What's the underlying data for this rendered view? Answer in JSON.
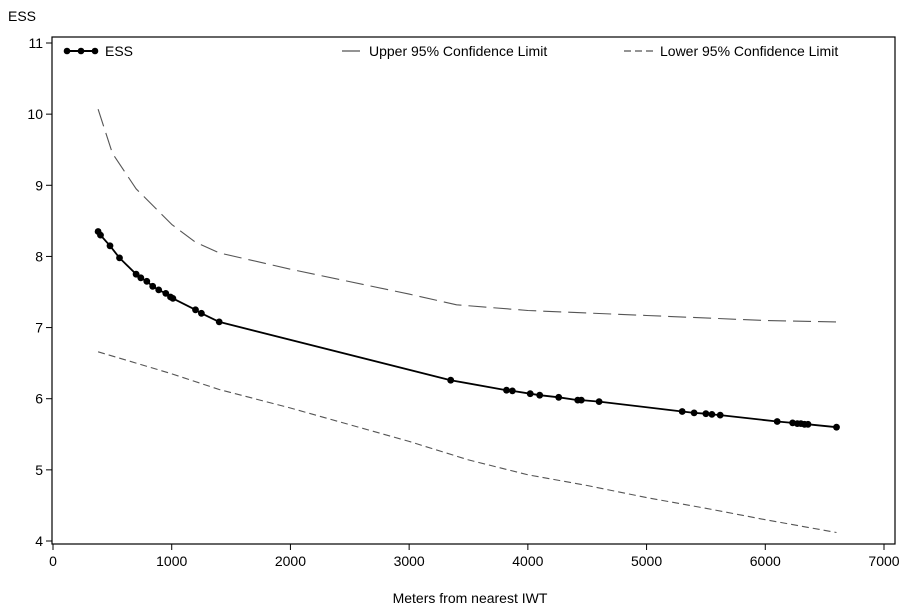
{
  "chart_data": {
    "type": "line",
    "title": "",
    "xlabel": "Meters from nearest IWT",
    "ylabel": "ESS",
    "xlim": [
      0,
      7000
    ],
    "ylim": [
      4,
      11
    ],
    "x_ticks": [
      0,
      1000,
      2000,
      3000,
      4000,
      5000,
      6000,
      7000
    ],
    "y_ticks": [
      4,
      5,
      6,
      7,
      8,
      9,
      10,
      11
    ],
    "grid": false,
    "legend_position": "top",
    "legend": [
      "ESS",
      "Upper 95% Confidence Limit",
      "Lower 95% Confidence Limit"
    ],
    "series": [
      {
        "name": "ESS",
        "style": "solid-markers",
        "x": [
          380,
          400,
          480,
          560,
          700,
          740,
          790,
          840,
          890,
          950,
          990,
          1010,
          1200,
          1250,
          1400,
          3350,
          3820,
          3870,
          4020,
          4100,
          4260,
          4420,
          4450,
          4600,
          5300,
          5400,
          5500,
          5550,
          5620,
          6100,
          6230,
          6270,
          6300,
          6330,
          6360,
          6600
        ],
        "y": [
          8.35,
          8.3,
          8.15,
          7.98,
          7.75,
          7.7,
          7.65,
          7.58,
          7.53,
          7.48,
          7.43,
          7.41,
          7.25,
          7.2,
          7.08,
          6.26,
          6.12,
          6.11,
          6.07,
          6.05,
          6.02,
          5.98,
          5.98,
          5.96,
          5.82,
          5.8,
          5.79,
          5.78,
          5.77,
          5.68,
          5.66,
          5.65,
          5.65,
          5.64,
          5.64,
          5.6
        ]
      },
      {
        "name": "Upper 95% Confidence Limit",
        "style": "long-dash",
        "x": [
          380,
          500,
          700,
          1000,
          1200,
          1400,
          2000,
          3000,
          3400,
          4000,
          5000,
          6000,
          6600
        ],
        "y": [
          10.07,
          9.45,
          8.95,
          8.45,
          8.2,
          8.05,
          7.82,
          7.47,
          7.32,
          7.24,
          7.17,
          7.1,
          7.08
        ]
      },
      {
        "name": "Lower 95% Confidence Limit",
        "style": "short-dash",
        "x": [
          380,
          700,
          1000,
          1400,
          2000,
          3000,
          3500,
          4000,
          4500,
          5000,
          5500,
          6000,
          6600
        ],
        "y": [
          6.66,
          6.5,
          6.35,
          6.13,
          5.87,
          5.4,
          5.14,
          4.93,
          4.78,
          4.61,
          4.46,
          4.3,
          4.12
        ]
      }
    ]
  }
}
